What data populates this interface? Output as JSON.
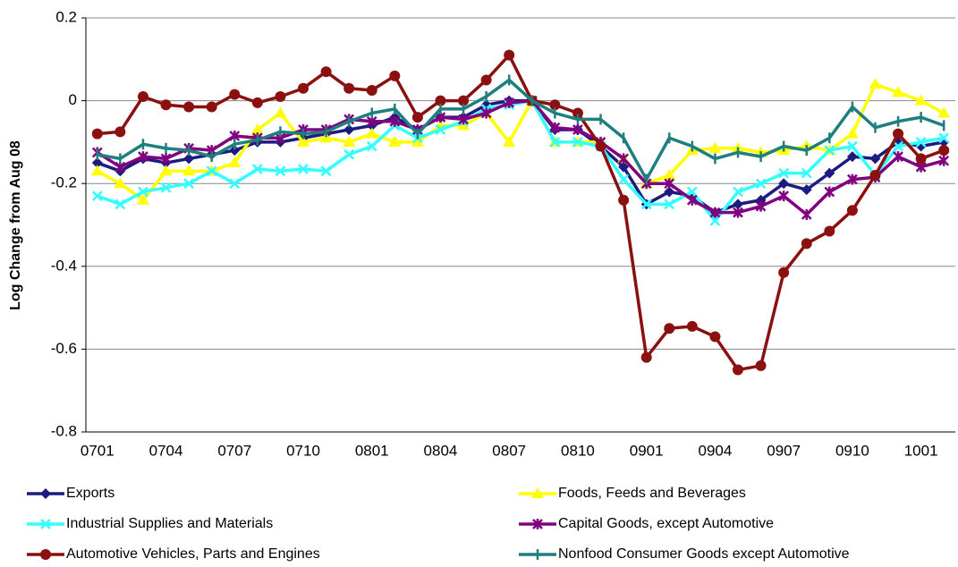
{
  "chart_data": {
    "type": "line",
    "y_label": "Log Change from Aug 08",
    "categories": [
      "0701",
      null,
      null,
      "0704",
      null,
      null,
      "0707",
      null,
      null,
      "0710",
      null,
      null,
      "0801",
      null,
      null,
      "0804",
      null,
      null,
      "0807",
      null,
      null,
      "0810",
      null,
      null,
      "0901",
      null,
      null,
      "0904",
      null,
      null,
      "0907",
      null,
      null,
      "0910",
      null,
      null,
      "1001",
      null
    ],
    "ylim": [
      -0.8,
      0.2
    ],
    "yticks": [
      0.2,
      0,
      -0.2,
      -0.4,
      -0.6,
      -0.8
    ],
    "grid": true,
    "series": [
      {
        "name": "Exports",
        "color": "#1c1c80",
        "marker": "diamond",
        "values": [
          -0.15,
          -0.17,
          -0.14,
          -0.15,
          -0.14,
          -0.13,
          -0.12,
          -0.1,
          -0.1,
          -0.09,
          -0.08,
          -0.07,
          -0.06,
          -0.04,
          -0.07,
          -0.04,
          -0.04,
          -0.01,
          0,
          0,
          -0.07,
          -0.07,
          -0.11,
          -0.16,
          -0.25,
          -0.22,
          -0.23,
          -0.27,
          -0.25,
          -0.24,
          -0.2,
          -0.215,
          -0.175,
          -0.135,
          -0.14,
          -0.1,
          -0.11,
          -0.1
        ]
      },
      {
        "name": "Foods, Feeds and Beverages",
        "color": "#ffff00",
        "marker": "triangle",
        "values": [
          -0.17,
          -0.2,
          -0.24,
          -0.17,
          -0.17,
          -0.17,
          -0.15,
          -0.07,
          -0.03,
          -0.1,
          -0.09,
          -0.1,
          -0.08,
          -0.1,
          -0.1,
          -0.06,
          -0.06,
          -0.03,
          -0.1,
          0,
          -0.1,
          -0.1,
          -0.1,
          -0.14,
          -0.2,
          -0.18,
          -0.12,
          -0.115,
          -0.115,
          -0.125,
          -0.12,
          -0.11,
          -0.12,
          -0.08,
          0.04,
          0.02,
          0,
          -0.03
        ]
      },
      {
        "name": "Industrial Supplies and Materials",
        "color": "#33ffff",
        "marker": "cross",
        "values": [
          -0.23,
          -0.25,
          -0.22,
          -0.21,
          -0.2,
          -0.17,
          -0.2,
          -0.165,
          -0.17,
          -0.165,
          -0.17,
          -0.13,
          -0.11,
          -0.06,
          -0.09,
          -0.07,
          -0.05,
          -0.02,
          -0.01,
          0,
          -0.1,
          -0.1,
          -0.11,
          -0.19,
          -0.25,
          -0.25,
          -0.22,
          -0.29,
          -0.22,
          -0.2,
          -0.175,
          -0.175,
          -0.12,
          -0.11,
          -0.18,
          -0.11,
          -0.1,
          -0.09
        ]
      },
      {
        "name": "Capital Goods, except Automotive",
        "color": "#800080",
        "marker": "star",
        "values": [
          -0.125,
          -0.16,
          -0.135,
          -0.14,
          -0.115,
          -0.12,
          -0.085,
          -0.09,
          -0.09,
          -0.07,
          -0.07,
          -0.045,
          -0.05,
          -0.05,
          -0.07,
          -0.04,
          -0.045,
          -0.03,
          -0.005,
          0,
          -0.065,
          -0.07,
          -0.1,
          -0.14,
          -0.2,
          -0.2,
          -0.24,
          -0.27,
          -0.27,
          -0.255,
          -0.23,
          -0.275,
          -0.22,
          -0.19,
          -0.185,
          -0.135,
          -0.16,
          -0.145
        ]
      },
      {
        "name": "Automotive Vehicles, Parts and Engines",
        "color": "#8b1010",
        "marker": "circle",
        "values": [
          -0.08,
          -0.075,
          0.01,
          -0.01,
          -0.015,
          -0.015,
          0.015,
          -0.005,
          0.01,
          0.03,
          0.07,
          0.03,
          0.025,
          0.06,
          -0.04,
          0,
          0,
          0.05,
          0.11,
          0,
          -0.01,
          -0.03,
          -0.11,
          -0.24,
          -0.62,
          -0.55,
          -0.545,
          -0.57,
          -0.65,
          -0.64,
          -0.415,
          -0.345,
          -0.315,
          -0.265,
          -0.18,
          -0.08,
          -0.14,
          -0.12
        ]
      },
      {
        "name": "Nonfood Consumer Goods except Automotive",
        "color": "#1f7f7f",
        "marker": "plus",
        "values": [
          -0.13,
          -0.14,
          -0.105,
          -0.115,
          -0.12,
          -0.135,
          -0.105,
          -0.095,
          -0.075,
          -0.08,
          -0.075,
          -0.05,
          -0.03,
          -0.02,
          -0.08,
          -0.02,
          -0.02,
          0.01,
          0.05,
          0,
          -0.03,
          -0.045,
          -0.045,
          -0.09,
          -0.19,
          -0.09,
          -0.11,
          -0.14,
          -0.125,
          -0.135,
          -0.11,
          -0.12,
          -0.09,
          -0.015,
          -0.065,
          -0.05,
          -0.04,
          -0.06
        ]
      }
    ]
  }
}
